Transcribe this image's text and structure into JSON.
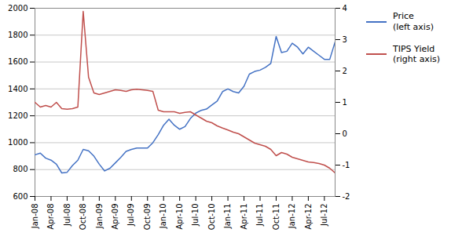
{
  "chart_data": {
    "type": "line",
    "categories": [
      "Jan-08",
      null,
      null,
      "Apr-08",
      null,
      null,
      "Jul-08",
      null,
      null,
      "Oct-08",
      null,
      null,
      "Jan-09",
      null,
      null,
      "Apr-09",
      null,
      null,
      "Jul-09",
      null,
      null,
      "Oct-09",
      null,
      null,
      "Jan-10",
      null,
      null,
      "Apr-10",
      null,
      null,
      "Jul-10",
      null,
      null,
      "Oct-10",
      null,
      null,
      "Jan-11",
      null,
      null,
      "Apr-11",
      null,
      null,
      "Jul-11",
      null,
      null,
      "Oct-11",
      null,
      null,
      "Jan-12",
      null,
      null,
      "Apr-12",
      null,
      null,
      "Jul-12",
      null,
      null
    ],
    "series": [
      {
        "name": "Price\n(left axis)",
        "color": "#4472C4",
        "values": [
          910,
          922,
          885,
          870,
          840,
          775,
          780,
          830,
          870,
          950,
          940,
          900,
          840,
          790,
          810,
          850,
          890,
          935,
          950,
          960,
          960,
          960,
          1000,
          1060,
          1130,
          1175,
          1130,
          1100,
          1120,
          1180,
          1220,
          1240,
          1250,
          1280,
          1310,
          1380,
          1400,
          1380,
          1370,
          1420,
          1510,
          1530,
          1540,
          1560,
          1590,
          1790,
          1670,
          1680,
          1740,
          1710,
          1660,
          1710,
          1680,
          1650,
          1620,
          1620,
          1750
        ]
      },
      {
        "name": "TIPS Yield\n(right axis)",
        "color": "#C0504D",
        "axis": "y2",
        "values": [
          1.0,
          0.85,
          0.9,
          0.85,
          1.0,
          0.8,
          0.78,
          0.8,
          0.85,
          3.9,
          1.8,
          1.3,
          1.25,
          1.3,
          1.35,
          1.4,
          1.38,
          1.35,
          1.4,
          1.42,
          1.4,
          1.38,
          1.35,
          0.75,
          0.7,
          0.7,
          0.7,
          0.65,
          0.68,
          0.7,
          0.6,
          0.5,
          0.4,
          0.35,
          0.25,
          0.18,
          0.12,
          0.05,
          0.0,
          -0.1,
          -0.2,
          -0.3,
          -0.35,
          -0.4,
          -0.5,
          -0.7,
          -0.6,
          -0.65,
          -0.75,
          -0.8,
          -0.85,
          -0.9,
          -0.92,
          -0.95,
          -1.0,
          -1.1,
          -1.25
        ]
      }
    ],
    "ylim": [
      600,
      2000
    ],
    "yticks": [
      600,
      800,
      1000,
      1200,
      1400,
      1600,
      1800,
      2000
    ],
    "y2lim": [
      -2,
      4
    ],
    "y2ticks": [
      -2,
      -1,
      0,
      1,
      2,
      3,
      4
    ],
    "grid": true,
    "legend": "right"
  }
}
